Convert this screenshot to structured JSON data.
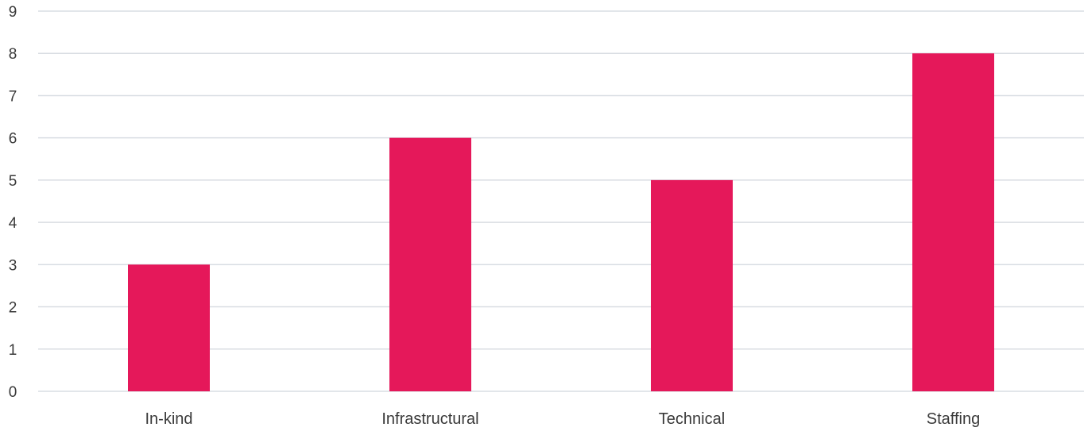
{
  "chart_data": {
    "type": "bar",
    "title": "",
    "xlabel": "",
    "ylabel": "",
    "categories": [
      "In-kind",
      "Infrastructural",
      "Technical",
      "Staffing"
    ],
    "values": [
      3,
      6,
      5,
      8
    ],
    "ylim": [
      0,
      9
    ],
    "yticks": [
      "0",
      "1",
      "2",
      "3",
      "4",
      "5",
      "6",
      "7",
      "8",
      "9"
    ],
    "grid": true,
    "legend": "none",
    "bar_color": "#e5185a",
    "grid_color": "#d9dde3"
  }
}
